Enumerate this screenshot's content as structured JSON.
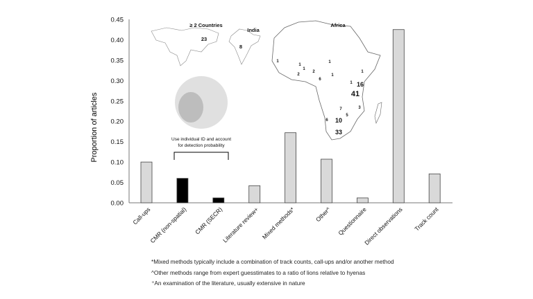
{
  "chart_data": {
    "type": "bar",
    "ylabel": "Proportion of articles",
    "xlabel": "",
    "ylim": [
      0,
      0.45
    ],
    "yticks": [
      "0.00",
      "0.05",
      "0.10",
      "0.15",
      "0.20",
      "0.25",
      "0.30",
      "0.35",
      "0.40",
      "0.45"
    ],
    "grid": false,
    "categories": [
      "Call-ups",
      "CMR (non-spatial)",
      "CMR (SECR)",
      "Literature review+",
      "Mixed methods*",
      "Other^",
      "Questionnaire",
      "Direct observations",
      "Track count"
    ],
    "values": [
      0.1,
      0.06,
      0.012,
      0.042,
      0.172,
      0.107,
      0.012,
      0.425,
      0.071
    ],
    "bar_colors": [
      "#d9d9d9",
      "#000000",
      "#000000",
      "#d9d9d9",
      "#d9d9d9",
      "#d9d9d9",
      "#d9d9d9",
      "#d9d9d9",
      "#d9d9d9"
    ],
    "annotations": {
      "bracket_label": [
        "Use individual ID and account",
        "for detection probability"
      ],
      "map_titles": {
        "world": "≥ 2 Countries",
        "india": "India",
        "africa": "Africa"
      },
      "world_count": "23",
      "india_count": "8",
      "africa_counts": [
        "1",
        "1",
        "1",
        "2",
        "2",
        "6",
        "1",
        "1",
        "1",
        "1",
        "16",
        "41",
        "3",
        "7",
        "5",
        "6",
        "10",
        "33"
      ]
    },
    "footnotes": [
      "*Mixed methods typically include a combination of track counts, call-ups and/or another method",
      "^Other methods range from expert guesstimates to a ratio of lions relative to hyenas",
      "⁺An examination of the literature, usually extensive in nature"
    ]
  }
}
